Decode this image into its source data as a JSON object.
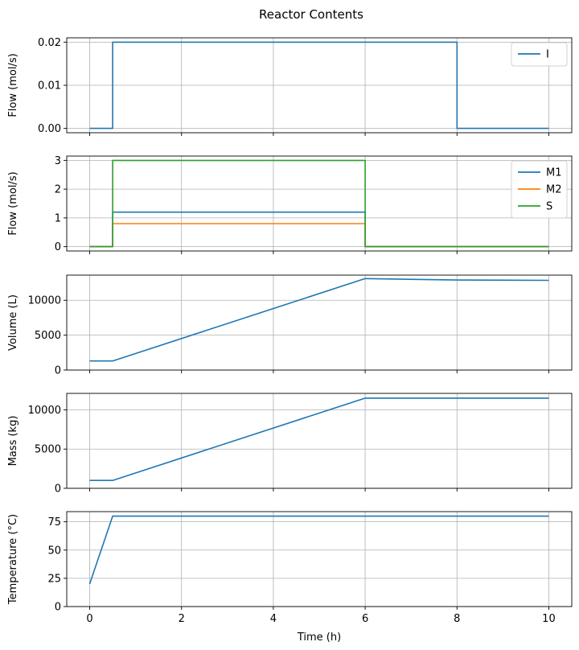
{
  "chart_data": {
    "title": "Reactor Contents",
    "xlabel": "Time (h)",
    "xlim": [
      -0.5,
      10.5
    ],
    "x_ticks": [
      0,
      2,
      4,
      6,
      8,
      10
    ],
    "x_tick_labels": [
      "0",
      "2",
      "4",
      "6",
      "8",
      "10"
    ],
    "grid": true,
    "subplots": [
      {
        "type": "line",
        "ylabel": "Flow (mol/s)",
        "ylim": [
          -0.001,
          0.021
        ],
        "y_ticks": [
          0,
          0.01,
          0.02
        ],
        "y_tick_labels": [
          "0.00",
          "0.01",
          "0.02"
        ],
        "legend": "upper-right",
        "series": [
          {
            "name": "I",
            "color": "#1f77b4",
            "x": [
              0,
              0.5,
              0.5,
              8,
              8,
              10
            ],
            "y": [
              0,
              0,
              0.02,
              0.02,
              0,
              0
            ]
          }
        ]
      },
      {
        "type": "line",
        "ylabel": "Flow (mol/s)",
        "ylim": [
          -0.15,
          3.15
        ],
        "y_ticks": [
          0,
          1,
          2,
          3
        ],
        "y_tick_labels": [
          "0",
          "1",
          "2",
          "3"
        ],
        "legend": "upper-right",
        "series": [
          {
            "name": "M1",
            "color": "#1f77b4",
            "x": [
              0,
              0.5,
              0.5,
              6,
              6,
              10
            ],
            "y": [
              0,
              0,
              1.2,
              1.2,
              0,
              0
            ]
          },
          {
            "name": "M2",
            "color": "#ff7f0e",
            "x": [
              0,
              0.5,
              0.5,
              6,
              6,
              10
            ],
            "y": [
              0,
              0,
              0.8,
              0.8,
              0,
              0
            ]
          },
          {
            "name": "S",
            "color": "#2ca02c",
            "x": [
              0,
              0.5,
              0.5,
              6,
              6,
              10
            ],
            "y": [
              0,
              0,
              3,
              3,
              0,
              0
            ]
          }
        ]
      },
      {
        "type": "line",
        "ylabel": "Volume (L)",
        "ylim": [
          0,
          13600
        ],
        "y_ticks": [
          0,
          5000,
          10000
        ],
        "y_tick_labels": [
          "0",
          "5000",
          "10000"
        ],
        "legend": "none",
        "series": [
          {
            "name": "Volume",
            "color": "#1f77b4",
            "x": [
              0,
              0.5,
              6,
              8,
              10
            ],
            "y": [
              1300,
              1300,
              13100,
              12900,
              12850
            ]
          }
        ]
      },
      {
        "type": "line",
        "ylabel": "Mass (kg)",
        "ylim": [
          0,
          12100
        ],
        "y_ticks": [
          0,
          5000,
          10000
        ],
        "y_tick_labels": [
          "0",
          "5000",
          "10000"
        ],
        "legend": "none",
        "series": [
          {
            "name": "Mass",
            "color": "#1f77b4",
            "x": [
              0,
              0.5,
              6,
              10
            ],
            "y": [
              1000,
              1000,
              11500,
              11500
            ]
          }
        ]
      },
      {
        "type": "line",
        "ylabel": "Temperature (°C)",
        "ylim": [
          0,
          84
        ],
        "y_ticks": [
          0,
          25,
          50,
          75
        ],
        "y_tick_labels": [
          "0",
          "25",
          "50",
          "75"
        ],
        "legend": "none",
        "series": [
          {
            "name": "Temperature",
            "color": "#1f77b4",
            "x": [
              0,
              0.5,
              10
            ],
            "y": [
              20,
              80,
              80
            ]
          }
        ]
      }
    ]
  }
}
